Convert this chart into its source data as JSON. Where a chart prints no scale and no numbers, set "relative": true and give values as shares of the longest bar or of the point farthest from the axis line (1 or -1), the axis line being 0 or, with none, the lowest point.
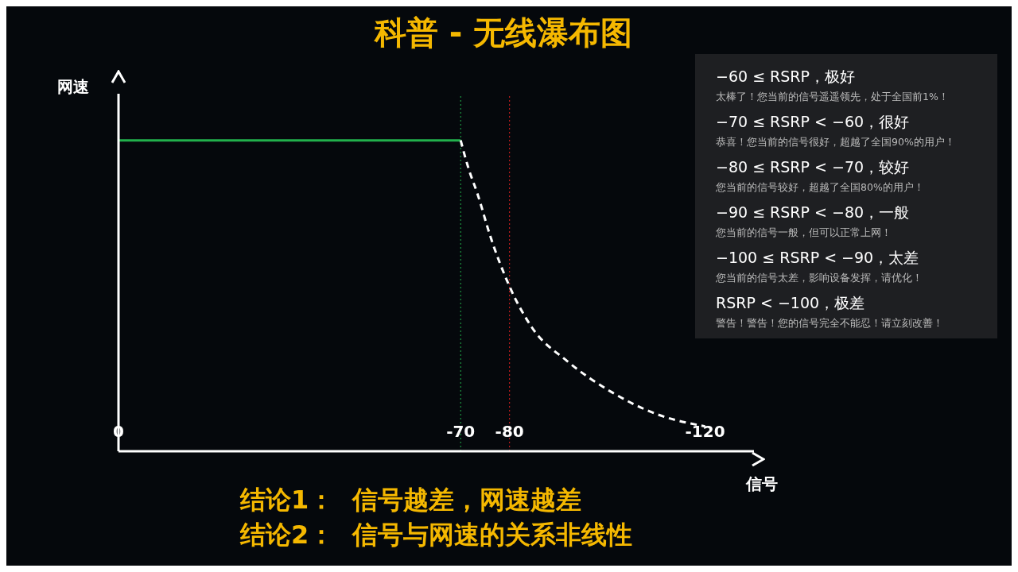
{
  "chart_data": {
    "type": "line",
    "title": "科普 - 无线瀑布图",
    "xlabel": "信号",
    "ylabel": "网速",
    "relative": true,
    "xlim": [
      0,
      -130
    ],
    "xticks": [
      0,
      -70,
      -80,
      -120
    ],
    "tick_labels": "x",
    "grid": false,
    "marker": "none",
    "series": [
      {
        "color": "#22b14c",
        "line_style": "solid",
        "x": [
          0,
          -70
        ],
        "values": [
          1,
          1
        ]
      },
      {
        "color": "#ffffff",
        "line_style": "dashed",
        "x": [
          -70,
          -71.6,
          -73.4,
          -76.1,
          -80,
          -84.5,
          -91.8,
          -100.9,
          -110,
          -120
        ],
        "values": [
          1,
          0.91,
          0.83,
          0.69,
          0.53,
          0.4,
          0.29,
          0.19,
          0.12,
          0.08
        ]
      }
    ],
    "ref_lines": [
      {
        "axis": "x",
        "value": -70,
        "color": "#22b14c",
        "line_style": "dotted"
      },
      {
        "axis": "x",
        "value": -80,
        "color": "#e02020",
        "line_style": "dotted"
      }
    ],
    "annotations": [
      "−60 ≤ RSRP，极好",
      "太棒了！您当前的信号遥遥领先，处于全国前1%！",
      "−70 ≤ RSRP < −60，很好",
      "恭喜！您当前的信号很好，超越了全国90%的用户！",
      "−80 ≤ RSRP < −70，较好",
      "您当前的信号较好，超越了全国80%的用户！",
      "−90 ≤ RSRP < −80，一般",
      "您当前的信号一般，但可以正常上网！",
      "−100 ≤ RSRP < −90，太差",
      "您当前的信号太差，影响设备发挥，请优化！",
      "RSRP < −100，极差",
      "警告！警告！您的信号完全不能忍！请立刻改善！",
      "结论1：  信号越差，网速越差",
      "结论2：  信号与网速的关系非线性"
    ]
  }
}
